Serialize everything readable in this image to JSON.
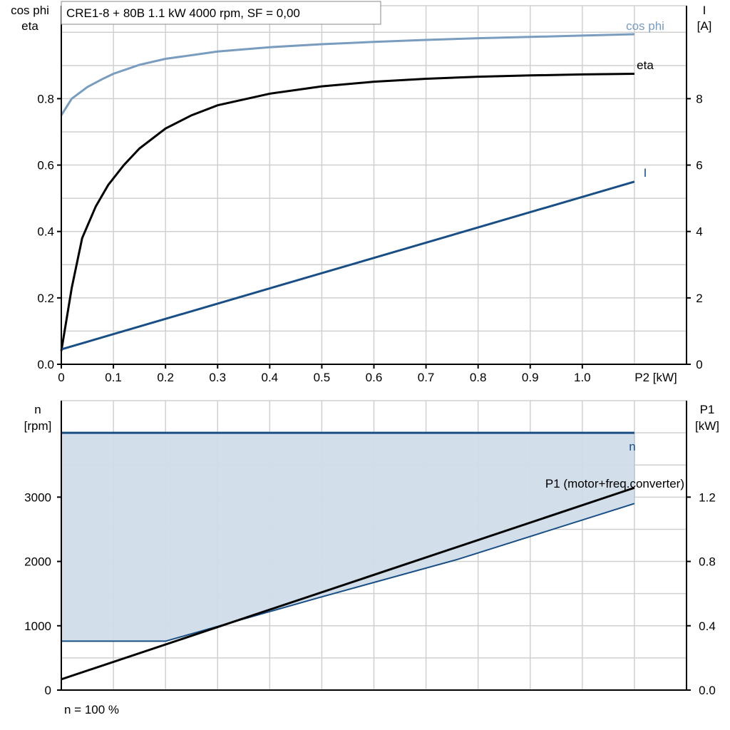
{
  "chart_data": [
    {
      "type": "line",
      "title": "CRE1-8 + 80B   1.1 kW   4000 rpm, SF = 0,00",
      "xlabel": "P2 [kW]",
      "ylabel_left": [
        "cos phi",
        "eta"
      ],
      "ylabel_right": [
        "I",
        "[A]"
      ],
      "xlim": [
        0,
        1.2
      ],
      "ylim_left": [
        0,
        1.08
      ],
      "ylim_right": [
        0,
        10.8
      ],
      "xticks": [
        "0",
        "0.1",
        "0.2",
        "0.3",
        "0.4",
        "0.5",
        "0.6",
        "0.7",
        "0.8",
        "0.9",
        "1.0"
      ],
      "yticks_left": [
        "0.0",
        "0.2",
        "0.4",
        "0.6",
        "0.8"
      ],
      "yticks_right": [
        "0",
        "2",
        "4",
        "6",
        "8"
      ],
      "grid": true,
      "series": [
        {
          "name": "cos phi",
          "axis": "left",
          "color": "#7a9cbf",
          "x": [
            0,
            0.02,
            0.05,
            0.08,
            0.1,
            0.15,
            0.2,
            0.3,
            0.4,
            0.5,
            0.6,
            0.7,
            0.8,
            0.9,
            1.0,
            1.1
          ],
          "y": [
            0.75,
            0.8,
            0.835,
            0.86,
            0.875,
            0.902,
            0.92,
            0.942,
            0.955,
            0.964,
            0.971,
            0.977,
            0.982,
            0.986,
            0.99,
            0.994
          ]
        },
        {
          "name": "eta",
          "axis": "left",
          "color": "#000000",
          "x": [
            0,
            0.02,
            0.04,
            0.066,
            0.09,
            0.12,
            0.15,
            0.2,
            0.25,
            0.3,
            0.4,
            0.5,
            0.6,
            0.7,
            0.8,
            0.9,
            1.0,
            1.1
          ],
          "y": [
            0.04,
            0.23,
            0.38,
            0.475,
            0.54,
            0.6,
            0.65,
            0.71,
            0.75,
            0.78,
            0.815,
            0.837,
            0.851,
            0.86,
            0.866,
            0.87,
            0.873,
            0.875
          ]
        },
        {
          "name": "I",
          "axis": "right",
          "color": "#1a4f86",
          "x": [
            0,
            1.1
          ],
          "y": [
            0.45,
            5.5
          ]
        }
      ]
    },
    {
      "type": "area",
      "xlim": [
        0,
        1.2
      ],
      "ylabel_left": [
        "n",
        "[rpm]"
      ],
      "ylabel_right": [
        "P1",
        "[kW]"
      ],
      "ylim_left": [
        0,
        4500
      ],
      "ylim_right": [
        0,
        1.8
      ],
      "yticks_left": [
        "0",
        "1000",
        "2000",
        "3000"
      ],
      "yticks_right": [
        "0.0",
        "0.4",
        "0.8",
        "1.2"
      ],
      "grid": true,
      "footer": "n = 100 %",
      "series": [
        {
          "name": "n",
          "axis": "left",
          "color": "#1a4f86",
          "x": [
            0,
            1.1
          ],
          "y": [
            4000,
            4000
          ]
        },
        {
          "axis": "left",
          "color": "#1a4f86",
          "x": [
            0,
            0.2,
            0.5,
            0.76,
            1.1
          ],
          "y": [
            760,
            760,
            1450,
            2030,
            2900
          ]
        },
        {
          "name": "P1 (motor+freq.converter)",
          "axis": "right",
          "color": "#000000",
          "x": [
            0,
            1.1
          ],
          "y": [
            0.067,
            1.258
          ]
        }
      ],
      "fill_color": "#d0dce8"
    }
  ]
}
